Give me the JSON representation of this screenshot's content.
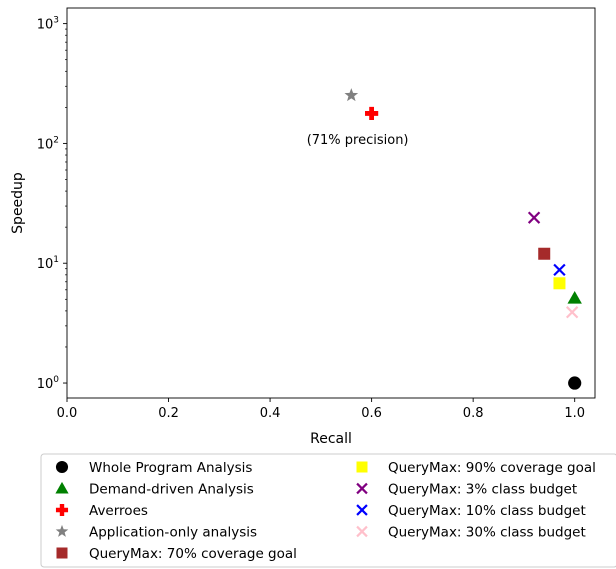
{
  "chart_data": {
    "type": "scatter",
    "xlabel": "Recall",
    "ylabel": "Speedup",
    "xlim": [
      0.0,
      1.04
    ],
    "ylim": [
      0.75,
      1350
    ],
    "yscale": "log",
    "grid": false,
    "legend_position": "below plot, two columns",
    "x_ticks": [
      {
        "value": 0.0,
        "label": "0.0"
      },
      {
        "value": 0.2,
        "label": "0.2"
      },
      {
        "value": 0.4,
        "label": "0.4"
      },
      {
        "value": 0.6,
        "label": "0.6"
      },
      {
        "value": 0.8,
        "label": "0.8"
      },
      {
        "value": 1.0,
        "label": "1.0"
      }
    ],
    "y_ticks": [
      {
        "value": 1,
        "base": "10",
        "exp": "0"
      },
      {
        "value": 10,
        "base": "10",
        "exp": "1"
      },
      {
        "value": 100,
        "base": "10",
        "exp": "2"
      },
      {
        "value": 1000,
        "base": "10",
        "exp": "3"
      }
    ],
    "series": [
      {
        "name": "Whole Program Analysis",
        "marker": "circle",
        "color": "#000000",
        "x": 1.0,
        "y": 1.0
      },
      {
        "name": "Demand-driven Analysis",
        "marker": "triangle",
        "color": "#008000",
        "x": 1.0,
        "y": 5.1
      },
      {
        "name": "Averroes",
        "marker": "plus",
        "color": "#ff0000",
        "x": 0.6,
        "y": 178
      },
      {
        "name": "Application-only analysis",
        "marker": "star",
        "color": "#808080",
        "x": 0.56,
        "y": 252
      },
      {
        "name": "QueryMax: 70% coverage goal",
        "marker": "square",
        "color": "#a52a2a",
        "x": 0.94,
        "y": 12
      },
      {
        "name": "QueryMax: 90% coverage goal",
        "marker": "square",
        "color": "#ffff00",
        "x": 0.97,
        "y": 6.8
      },
      {
        "name": "QueryMax: 3% class budget",
        "marker": "x",
        "color": "#800080",
        "x": 0.92,
        "y": 24
      },
      {
        "name": "QueryMax: 10% class budget",
        "marker": "x",
        "color": "#0000ff",
        "x": 0.97,
        "y": 8.8
      },
      {
        "name": "QueryMax: 30% class budget",
        "marker": "x",
        "color": "#ffc0cb",
        "x": 0.995,
        "y": 3.9
      }
    ],
    "annotations": [
      {
        "text": "(71% precision)",
        "x": 0.6,
        "y": 122
      }
    ]
  }
}
